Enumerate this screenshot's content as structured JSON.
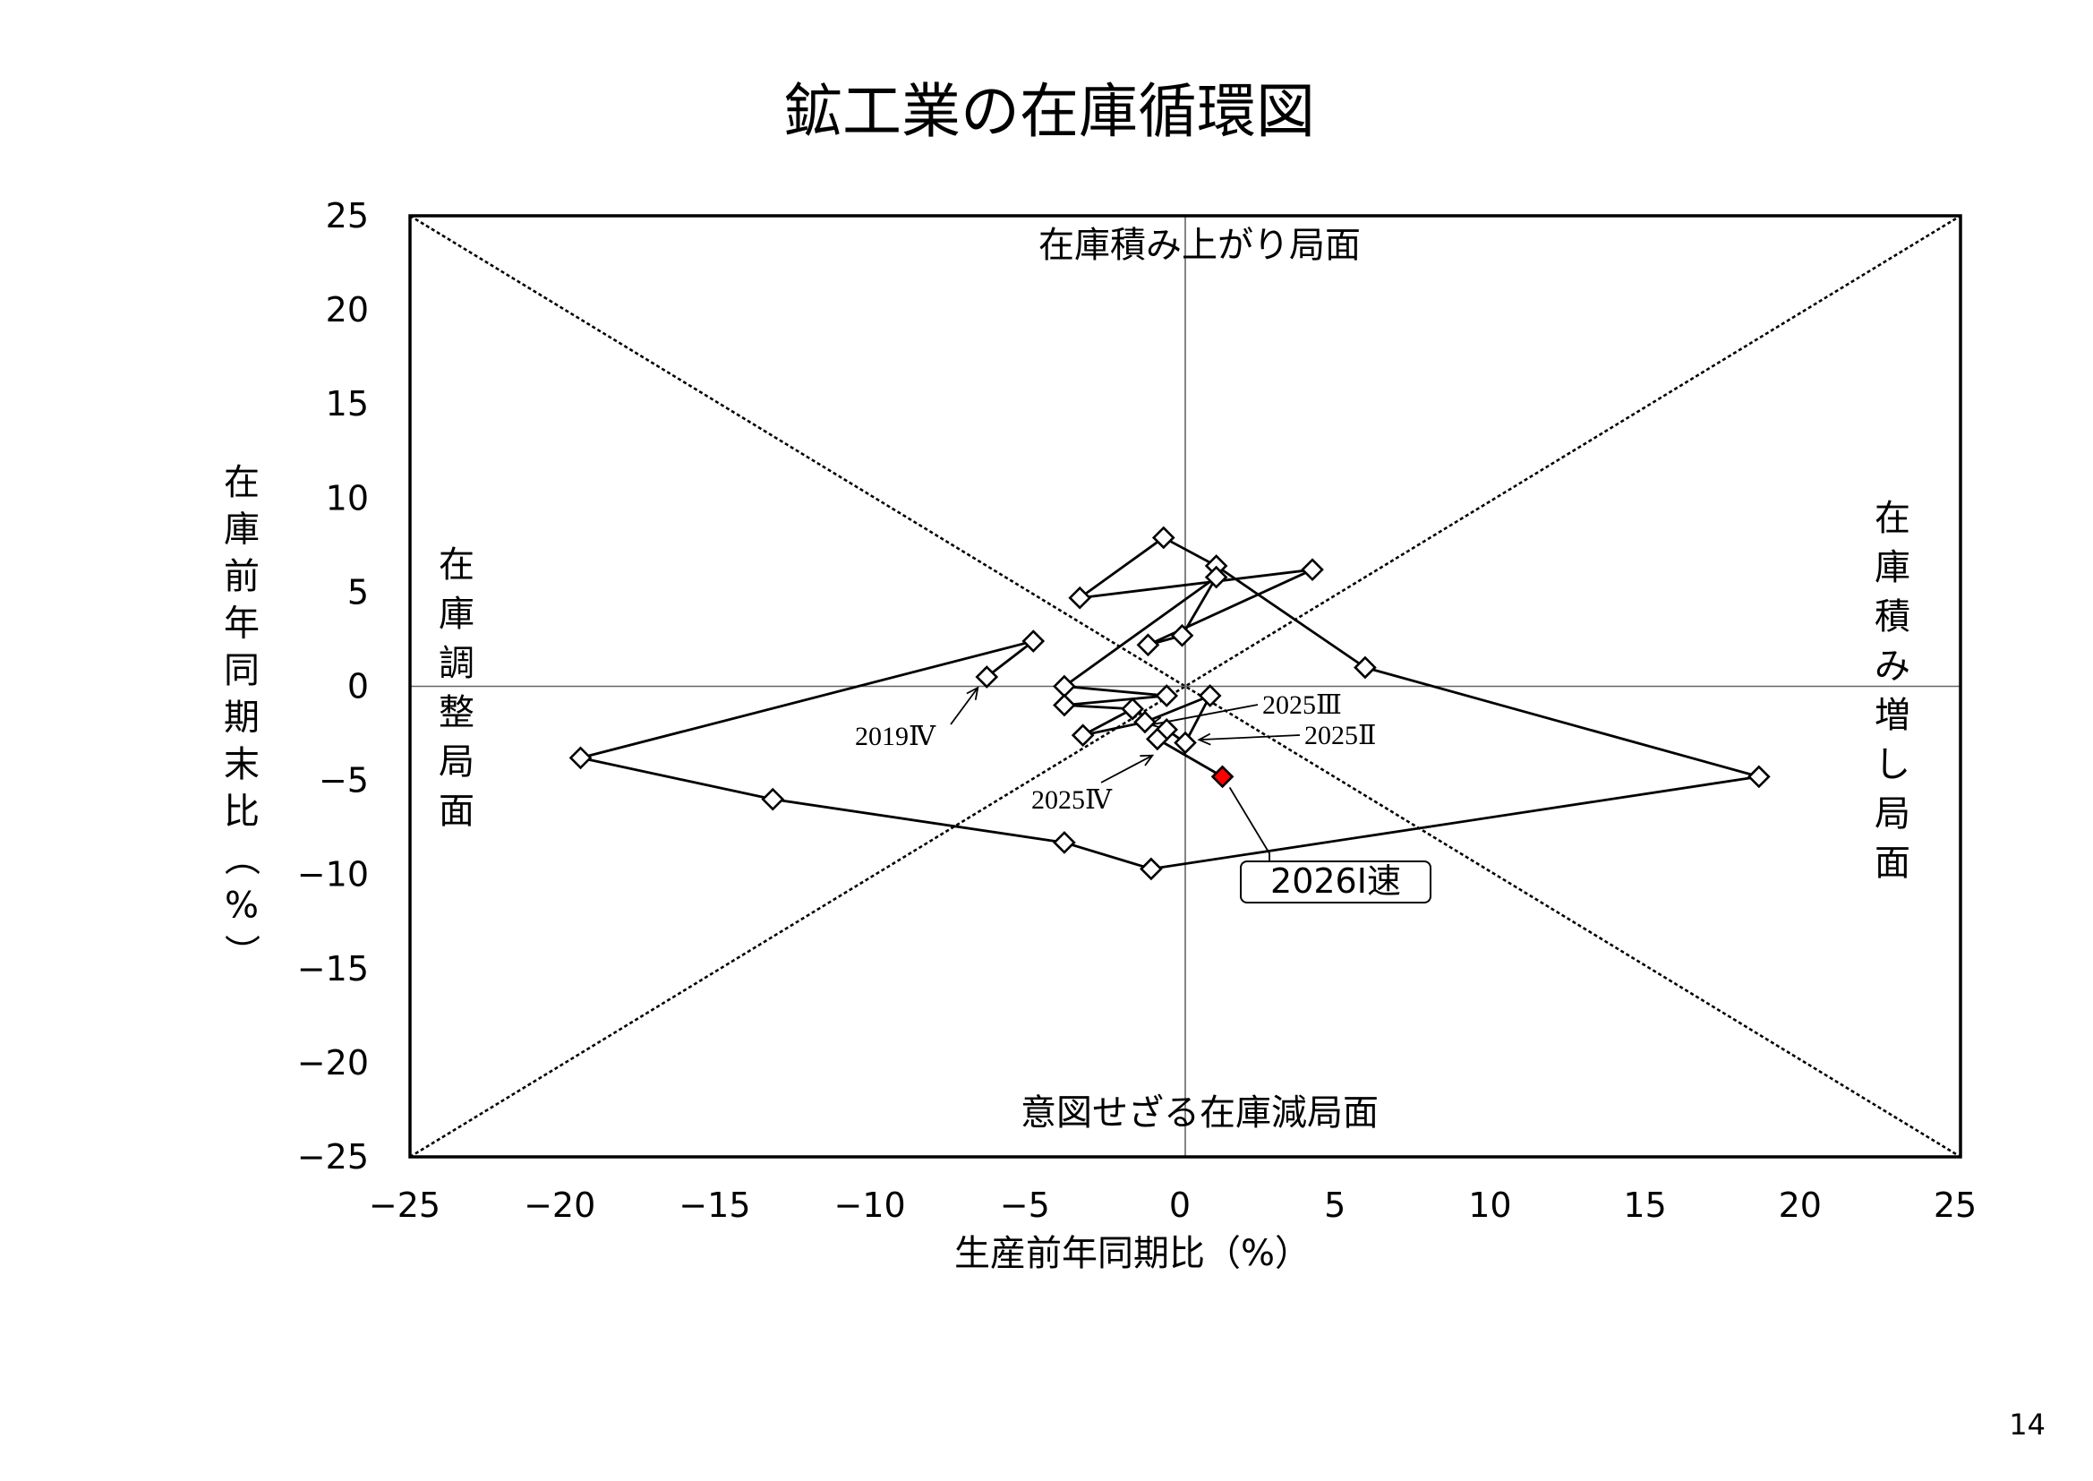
{
  "page_number": "14",
  "chart_data": {
    "type": "scatter",
    "title": "鉱工業の在庫循環図",
    "xlabel": "生産前年同期比（%）",
    "ylabel_chars": [
      "在",
      "庫",
      "前",
      "年",
      "同",
      "期",
      "末",
      "比",
      "（",
      "%",
      "）"
    ],
    "xlim": [
      -25,
      25
    ],
    "ylim": [
      -25,
      25
    ],
    "xticks": [
      -25,
      -20,
      -15,
      -10,
      -5,
      0,
      5,
      10,
      15,
      20,
      25
    ],
    "yticks": [
      -25,
      -20,
      -15,
      -10,
      -5,
      0,
      5,
      10,
      15,
      20,
      25
    ],
    "xtick_labels": [
      "−25",
      "−20",
      "−15",
      "−10",
      "−5",
      "0",
      "5",
      "10",
      "15",
      "20",
      "25"
    ],
    "ytick_labels": [
      "−25",
      "−20",
      "−15",
      "−10",
      "−5",
      "0",
      "5",
      "10",
      "15",
      "20",
      "25"
    ],
    "grid": false,
    "reference_lines": [
      {
        "from": [
          -25,
          25
        ],
        "to": [
          25,
          -25
        ],
        "style": "dotted"
      },
      {
        "from": [
          -25,
          -25
        ],
        "to": [
          25,
          25
        ],
        "style": "dotted"
      },
      {
        "from": [
          0,
          -25
        ],
        "to": [
          0,
          25
        ],
        "style": "solid-thin"
      },
      {
        "from": [
          -25,
          0
        ],
        "to": [
          25,
          0
        ],
        "style": "solid-thin"
      }
    ],
    "regions": {
      "top": "在庫積み上がり局面",
      "bottom": "意図せざる在庫減局面",
      "left": [
        "在",
        "庫",
        "調",
        "整",
        "局",
        "面"
      ],
      "right": [
        "在",
        "庫",
        "積",
        "み",
        "増",
        "し",
        "局",
        "面"
      ]
    },
    "series": [
      {
        "marker": "diamond-open",
        "color": "#000000",
        "points": [
          [
            -6.4,
            0.5
          ],
          [
            -4.9,
            2.4
          ],
          [
            -19.5,
            -3.8
          ],
          [
            -13.3,
            -6.0
          ],
          [
            -3.9,
            -8.3
          ],
          [
            -1.1,
            -9.7
          ],
          [
            18.5,
            -4.8
          ],
          [
            5.8,
            1.0
          ],
          [
            1.0,
            6.4
          ],
          [
            -0.7,
            7.9
          ],
          [
            -3.4,
            4.7
          ],
          [
            4.1,
            6.2
          ],
          [
            -1.2,
            2.2
          ],
          [
            -0.1,
            2.7
          ],
          [
            1.0,
            5.8
          ],
          [
            -3.9,
            0.0
          ],
          [
            -0.6,
            -0.5
          ],
          [
            -3.9,
            -1.0
          ],
          [
            -1.7,
            -1.2
          ],
          [
            -3.3,
            -2.6
          ],
          [
            -1.3,
            -1.9
          ],
          [
            0.8,
            -0.5
          ],
          [
            0.0,
            -3.0
          ],
          [
            -0.6,
            -2.3
          ],
          [
            -0.9,
            -2.8
          ]
        ]
      },
      {
        "marker": "diamond-filled",
        "color": "#ff0000",
        "points": [
          [
            1.2,
            -4.8
          ]
        ]
      }
    ],
    "annotations": [
      {
        "text": "2019Ⅳ",
        "target": [
          -6.4,
          0.5
        ]
      },
      {
        "text": "2025Ⅲ",
        "target": [
          -1.4,
          -1.9
        ]
      },
      {
        "text": "2025Ⅱ",
        "target": [
          0.1,
          -2.6
        ]
      },
      {
        "text": "2025Ⅳ",
        "target": [
          -1.0,
          -3.1
        ]
      },
      {
        "text": "2026Ⅰ速",
        "target": [
          1.2,
          -4.8
        ],
        "boxed": true
      }
    ]
  }
}
